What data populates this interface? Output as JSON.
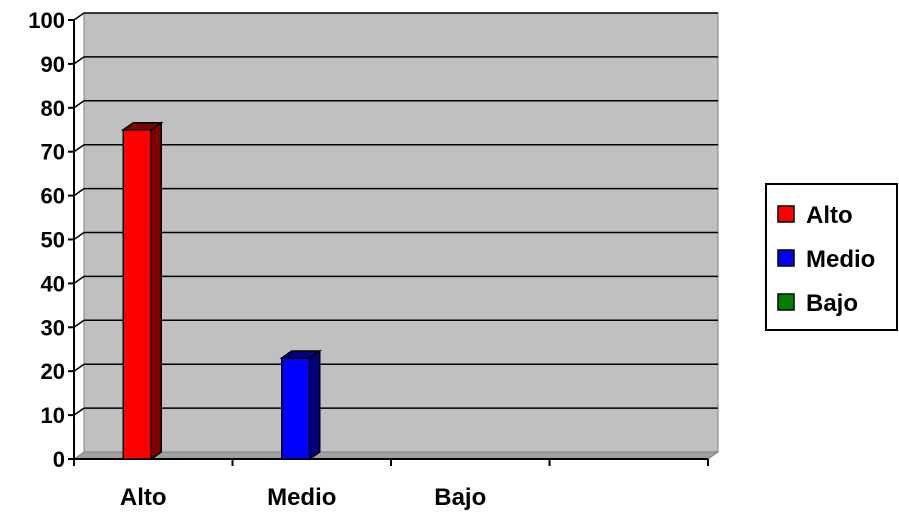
{
  "chart_data": {
    "type": "bar",
    "categories": [
      "Alto",
      "Medio",
      "Bajo"
    ],
    "series": [
      {
        "name": "Alto",
        "values": [
          75,
          null,
          null
        ],
        "color": "#ff0000",
        "dark": "#800000"
      },
      {
        "name": "Medio",
        "values": [
          null,
          23,
          null
        ],
        "color": "#0000ff",
        "dark": "#000080"
      },
      {
        "name": "Bajo",
        "values": [
          null,
          null,
          0
        ],
        "color": "#008000",
        "dark": "#004000"
      }
    ],
    "yticks": [
      "0",
      "10",
      "20",
      "30",
      "40",
      "50",
      "60",
      "70",
      "80",
      "90",
      "100"
    ],
    "ylim": [
      0,
      100
    ],
    "grid": true,
    "legend": "right",
    "background": "#c0c0c0"
  }
}
